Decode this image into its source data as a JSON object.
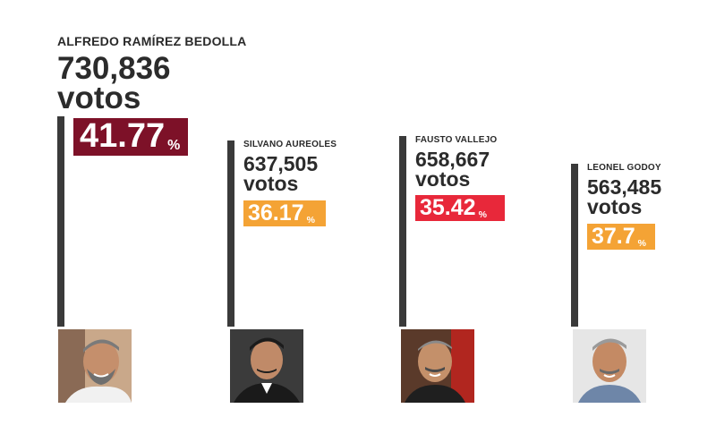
{
  "chart_data": {
    "type": "bar",
    "categories": [
      "ALFREDO RAMÍREZ BEDOLLA",
      "SILVANO AUREOLES",
      "FAUSTO VALLEJO",
      "LEONEL GODOY"
    ],
    "series": [
      {
        "values": [
          730836,
          637505,
          658667,
          563485
        ]
      },
      {
        "values": [
          41.77,
          36.17,
          35.42,
          37.7
        ]
      }
    ],
    "vote_labels": [
      "730,836",
      "637,505",
      "658,667",
      "563,485"
    ],
    "pct_labels": [
      "41.77",
      "36.17",
      "35.42",
      "37.7"
    ],
    "unit_label": "votos",
    "pct_symbol": "%",
    "pct_colors": [
      "#7d1128",
      "#f4a335",
      "#e8283a",
      "#f4a335"
    ],
    "bar_color": "#3a3a3a",
    "title": "",
    "xlabel": "",
    "ylabel": ""
  }
}
